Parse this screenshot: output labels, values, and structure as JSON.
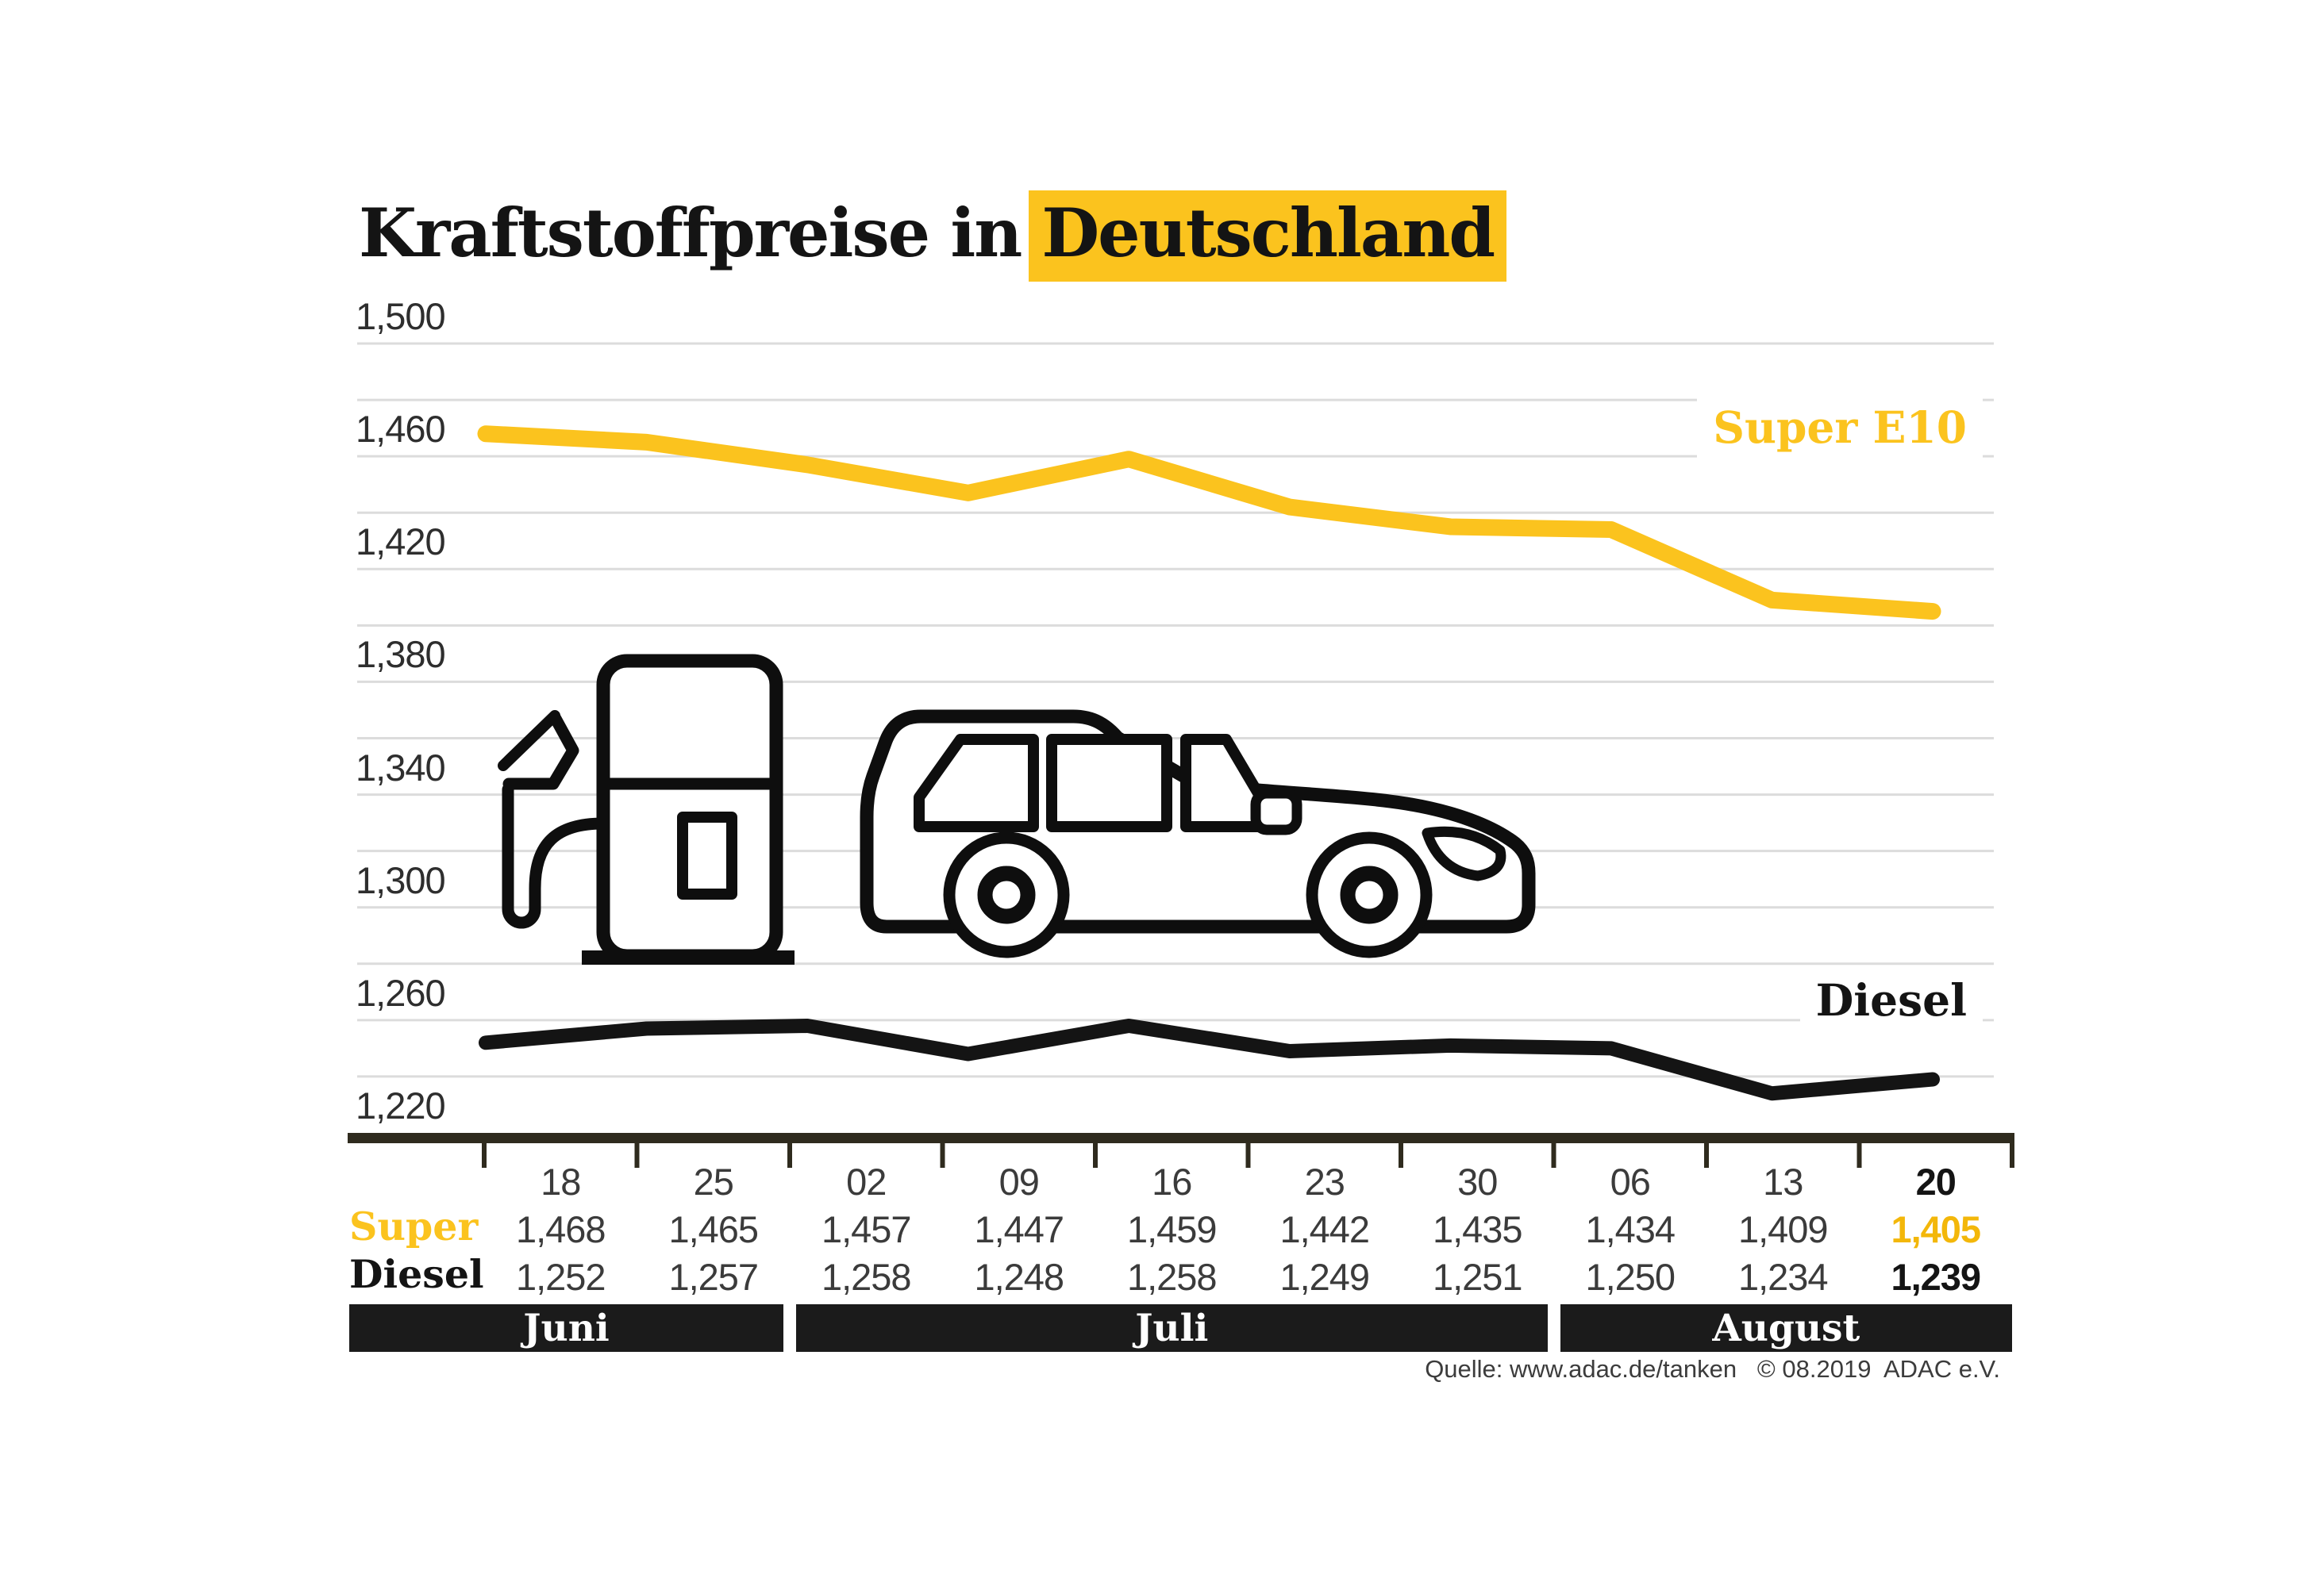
{
  "header": {
    "title_prefix": "Kraftstoffpreise in",
    "title_highlight": "Deutschland"
  },
  "colors": {
    "accent_yellow": "#FBC31E",
    "diesel_black": "#141414",
    "grid": "#dcdcdc",
    "axis": "#2f2b1e",
    "band_background": "#1b1b1b",
    "value_text": "#3b3b3b"
  },
  "chart_data": {
    "type": "line",
    "title": "Kraftstoffpreise in Deutschland",
    "x_tick_labels": [
      "18",
      "25",
      "02",
      "09",
      "16",
      "23",
      "30",
      "06",
      "13",
      "20"
    ],
    "series": [
      {
        "name": "Super E10",
        "color": "#FBC31E",
        "values": [
          1468,
          1465,
          1457,
          1447,
          1459,
          1442,
          1435,
          1434,
          1409,
          1405
        ]
      },
      {
        "name": "Diesel",
        "color": "#141414",
        "values": [
          1252,
          1257,
          1258,
          1248,
          1258,
          1249,
          1251,
          1250,
          1234,
          1239
        ]
      }
    ],
    "ylim": [
      1220,
      1500
    ],
    "grid_step": 20,
    "ytick_label_step": 40,
    "grid": "on",
    "legend_position": "inline-right",
    "months": [
      {
        "label": "Juni",
        "cols": 2
      },
      {
        "label": "Juli",
        "cols": 5
      },
      {
        "label": "August",
        "cols": 3
      }
    ]
  },
  "table": {
    "row_labels": [
      "Super",
      "Diesel"
    ]
  },
  "icons": [
    {
      "name": "fuel-pump-icon"
    },
    {
      "name": "car-icon"
    }
  ],
  "footer": {
    "source": "Quelle: www.adac.de/tanken   © 08.2019  ADAC e.V."
  }
}
